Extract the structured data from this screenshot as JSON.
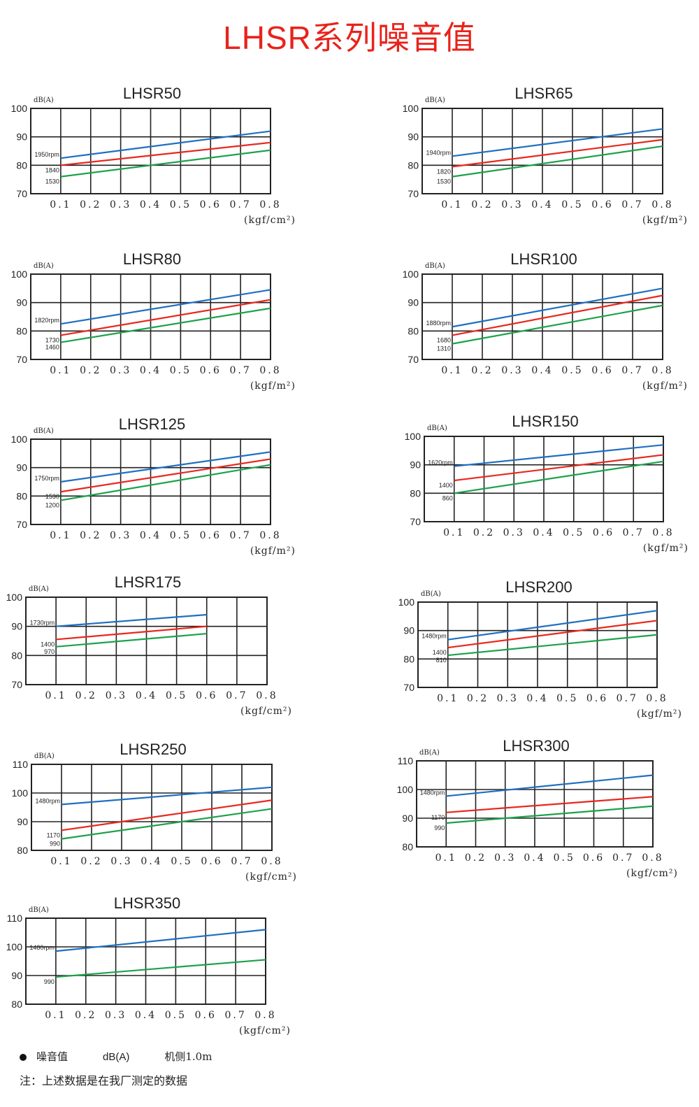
{
  "title": "LHSR系列噪音值",
  "footer": {
    "legend_label": "噪音值",
    "legend_unit": "dB(A)",
    "legend_position": "机侧1.0m",
    "note": "注：上述数据是在我厂测定的数据"
  },
  "colors": {
    "blue": "#1f6fc2",
    "red": "#e8281e",
    "green": "#1ca24b",
    "title": "#e8231b"
  },
  "chart_data": [
    {
      "type": "line",
      "title": "LHSR50",
      "ylabel": "dB(A)",
      "xlabel": "(kgf/cm²)",
      "ylim": [
        70,
        100
      ],
      "yticks": [
        "70",
        "80",
        "90",
        "100"
      ],
      "xticks": [
        "0.1",
        "0.2",
        "0.3",
        "0.4",
        "0.5",
        "0.6",
        "0.7",
        "0.8"
      ],
      "grid": true,
      "series": [
        {
          "name": "1950rpm",
          "color": "blue",
          "x": [
            0.1,
            0.8
          ],
          "y": [
            82.5,
            92
          ]
        },
        {
          "name": "1840",
          "color": "red",
          "x": [
            0.1,
            0.8
          ],
          "y": [
            80,
            88
          ]
        },
        {
          "name": "1530",
          "color": "green",
          "x": [
            0.1,
            0.8
          ],
          "y": [
            76,
            85.3
          ]
        }
      ]
    },
    {
      "type": "line",
      "title": "LHSR65",
      "ylabel": "dB(A)",
      "xlabel": "(kgf/m²)",
      "ylim": [
        70,
        100
      ],
      "yticks": [
        "70",
        "80",
        "90",
        "100"
      ],
      "xticks": [
        "0.1",
        "0.2",
        "0.3",
        "0.4",
        "0.5",
        "0.6",
        "0.7",
        "0.8"
      ],
      "grid": true,
      "series": [
        {
          "name": "1940rpm",
          "color": "blue",
          "x": [
            0.1,
            0.8
          ],
          "y": [
            83.2,
            92.8
          ]
        },
        {
          "name": "1820",
          "color": "red",
          "x": [
            0.1,
            0.8
          ],
          "y": [
            79.5,
            89
          ]
        },
        {
          "name": "1530",
          "color": "green",
          "x": [
            0.1,
            0.8
          ],
          "y": [
            76,
            86.7
          ]
        }
      ]
    },
    {
      "type": "line",
      "title": "LHSR80",
      "ylabel": "dB(A)",
      "xlabel": "(kgf/m²)",
      "ylim": [
        70,
        100
      ],
      "yticks": [
        "70",
        "80",
        "90",
        "100"
      ],
      "xticks": [
        "0.1",
        "0.2",
        "0.3",
        "0.4",
        "0.5",
        "0.6",
        "0.7",
        "0.8"
      ],
      "grid": true,
      "series": [
        {
          "name": "1820rpm",
          "color": "blue",
          "x": [
            0.1,
            0.8
          ],
          "y": [
            82.5,
            94.5
          ]
        },
        {
          "name": "1730",
          "color": "red",
          "x": [
            0.1,
            0.8
          ],
          "y": [
            78.5,
            91
          ]
        },
        {
          "name": "1460",
          "color": "green",
          "x": [
            0.1,
            0.8
          ],
          "y": [
            76,
            88
          ]
        }
      ]
    },
    {
      "type": "line",
      "title": "LHSR100",
      "ylabel": "dB(A)",
      "xlabel": "(kgf/m²)",
      "ylim": [
        70,
        100
      ],
      "yticks": [
        "70",
        "80",
        "90",
        "100"
      ],
      "xticks": [
        "0.1",
        "0.2",
        "0.3",
        "0.4",
        "0.5",
        "0.6",
        "0.7",
        "0.8"
      ],
      "grid": true,
      "series": [
        {
          "name": "1880rpm",
          "color": "blue",
          "x": [
            0.1,
            0.8
          ],
          "y": [
            81.5,
            95
          ]
        },
        {
          "name": "1680",
          "color": "red",
          "x": [
            0.1,
            0.8
          ],
          "y": [
            78.5,
            92.5
          ]
        },
        {
          "name": "1310",
          "color": "green",
          "x": [
            0.1,
            0.8
          ],
          "y": [
            75.5,
            89
          ]
        }
      ]
    },
    {
      "type": "line",
      "title": "LHSR125",
      "ylabel": "dB(A)",
      "xlabel": "(kgf/m²)",
      "ylim": [
        70,
        100
      ],
      "yticks": [
        "70",
        "80",
        "90",
        "100"
      ],
      "xticks": [
        "0.1",
        "0.2",
        "0.3",
        "0.4",
        "0.5",
        "0.6",
        "0.7",
        "0.8"
      ],
      "grid": true,
      "series": [
        {
          "name": "1750rpm",
          "color": "blue",
          "x": [
            0.1,
            0.8
          ],
          "y": [
            85,
            95.5
          ]
        },
        {
          "name": "1530",
          "color": "red",
          "x": [
            0.1,
            0.8
          ],
          "y": [
            81.5,
            93
          ]
        },
        {
          "name": "1200",
          "color": "green",
          "x": [
            0.1,
            0.8
          ],
          "y": [
            78.5,
            91
          ]
        }
      ]
    },
    {
      "type": "line",
      "title": "LHSR150",
      "ylabel": "dB(A)",
      "xlabel": "(kgf/m²)",
      "ylim": [
        70,
        100
      ],
      "yticks": [
        "70",
        "80",
        "90",
        "100"
      ],
      "xticks": [
        "0.1",
        "0.2",
        "0.3",
        "0.4",
        "0.5",
        "0.6",
        "0.7",
        "0.8"
      ],
      "grid": true,
      "series": [
        {
          "name": "1620rpm",
          "color": "blue",
          "x": [
            0.1,
            0.8
          ],
          "y": [
            89.5,
            97
          ]
        },
        {
          "name": "1400",
          "color": "red",
          "x": [
            0.1,
            0.8
          ],
          "y": [
            84.5,
            93.5
          ]
        },
        {
          "name": "860",
          "color": "green",
          "x": [
            0.1,
            0.8
          ],
          "y": [
            80,
            91.2
          ]
        }
      ]
    },
    {
      "type": "line",
      "title": "LHSR175",
      "ylabel": "dB(A)",
      "xlabel": "(kgf/cm²)",
      "ylim": [
        70,
        100
      ],
      "yticks": [
        "70",
        "80",
        "90",
        "100"
      ],
      "xticks": [
        "0.1",
        "0.2",
        "0.3",
        "0.4",
        "0.5",
        "0.6",
        "0.7",
        "0.8"
      ],
      "grid": true,
      "series": [
        {
          "name": "1730rpm",
          "color": "blue",
          "x": [
            0.1,
            0.6
          ],
          "y": [
            90,
            94
          ]
        },
        {
          "name": "1400",
          "color": "red",
          "x": [
            0.1,
            0.6
          ],
          "y": [
            85.5,
            90
          ]
        },
        {
          "name": "970",
          "color": "green",
          "x": [
            0.1,
            0.6
          ],
          "y": [
            83,
            87.5
          ]
        }
      ]
    },
    {
      "type": "line",
      "title": "LHSR200",
      "ylabel": "dB(A)",
      "xlabel": "(kgf/m²)",
      "ylim": [
        70,
        100
      ],
      "yticks": [
        "70",
        "80",
        "90",
        "100"
      ],
      "xticks": [
        "0.1",
        "0.2",
        "0.3",
        "0.4",
        "0.5",
        "0.6",
        "0.7",
        "0.8"
      ],
      "grid": true,
      "series": [
        {
          "name": "1480rpm",
          "color": "blue",
          "x": [
            0.1,
            0.8
          ],
          "y": [
            86.8,
            97
          ]
        },
        {
          "name": "1400",
          "color": "red",
          "x": [
            0.1,
            0.8
          ],
          "y": [
            84,
            93.5
          ]
        },
        {
          "name": "810",
          "color": "green",
          "x": [
            0.1,
            0.8
          ],
          "y": [
            81.3,
            88.5
          ]
        }
      ]
    },
    {
      "type": "line",
      "title": "LHSR250",
      "ylabel": "dB(A)",
      "xlabel": "(kgf/cm²)",
      "ylim": [
        80,
        110
      ],
      "yticks": [
        "80",
        "90",
        "100",
        "110"
      ],
      "xticks": [
        "0.1",
        "0.2",
        "0.3",
        "0.4",
        "0.5",
        "0.6",
        "0.7",
        "0.8"
      ],
      "grid": true,
      "series": [
        {
          "name": "1480rpm",
          "color": "blue",
          "x": [
            0.1,
            0.8
          ],
          "y": [
            96,
            102
          ]
        },
        {
          "name": "1170",
          "color": "red",
          "x": [
            0.1,
            0.8
          ],
          "y": [
            87,
            97.5
          ]
        },
        {
          "name": "990",
          "color": "green",
          "x": [
            0.1,
            0.8
          ],
          "y": [
            84,
            94.5
          ]
        }
      ]
    },
    {
      "type": "line",
      "title": "LHSR300",
      "ylabel": "dB(A)",
      "xlabel": "(kgf/cm²)",
      "ylim": [
        80,
        110
      ],
      "yticks": [
        "80",
        "90",
        "100",
        "110"
      ],
      "xticks": [
        "0.1",
        "0.2",
        "0.3",
        "0.4",
        "0.5",
        "0.6",
        "0.7",
        "0.8"
      ],
      "grid": true,
      "series": [
        {
          "name": "1480rpm",
          "color": "blue",
          "x": [
            0.1,
            0.8
          ],
          "y": [
            97.7,
            105
          ]
        },
        {
          "name": "1170",
          "color": "red",
          "x": [
            0.1,
            0.8
          ],
          "y": [
            92,
            97.5
          ]
        },
        {
          "name": "990",
          "color": "green",
          "x": [
            0.1,
            0.8
          ],
          "y": [
            88.3,
            94.2
          ]
        }
      ]
    },
    {
      "type": "line",
      "title": "LHSR350",
      "ylabel": "dB(A)",
      "xlabel": "(kgf/cm²)",
      "ylim": [
        80,
        110
      ],
      "yticks": [
        "80",
        "90",
        "100",
        "110"
      ],
      "xticks": [
        "0.1",
        "0.2",
        "0.3",
        "0.4",
        "0.5",
        "0.6",
        "0.7",
        "0.8"
      ],
      "grid": true,
      "series": [
        {
          "name": "1480rpm",
          "color": "blue",
          "x": [
            0.1,
            0.8
          ],
          "y": [
            98.5,
            106
          ]
        },
        {
          "name": "990",
          "color": "green",
          "x": [
            0.1,
            0.8
          ],
          "y": [
            89.5,
            95.5
          ]
        }
      ]
    }
  ]
}
